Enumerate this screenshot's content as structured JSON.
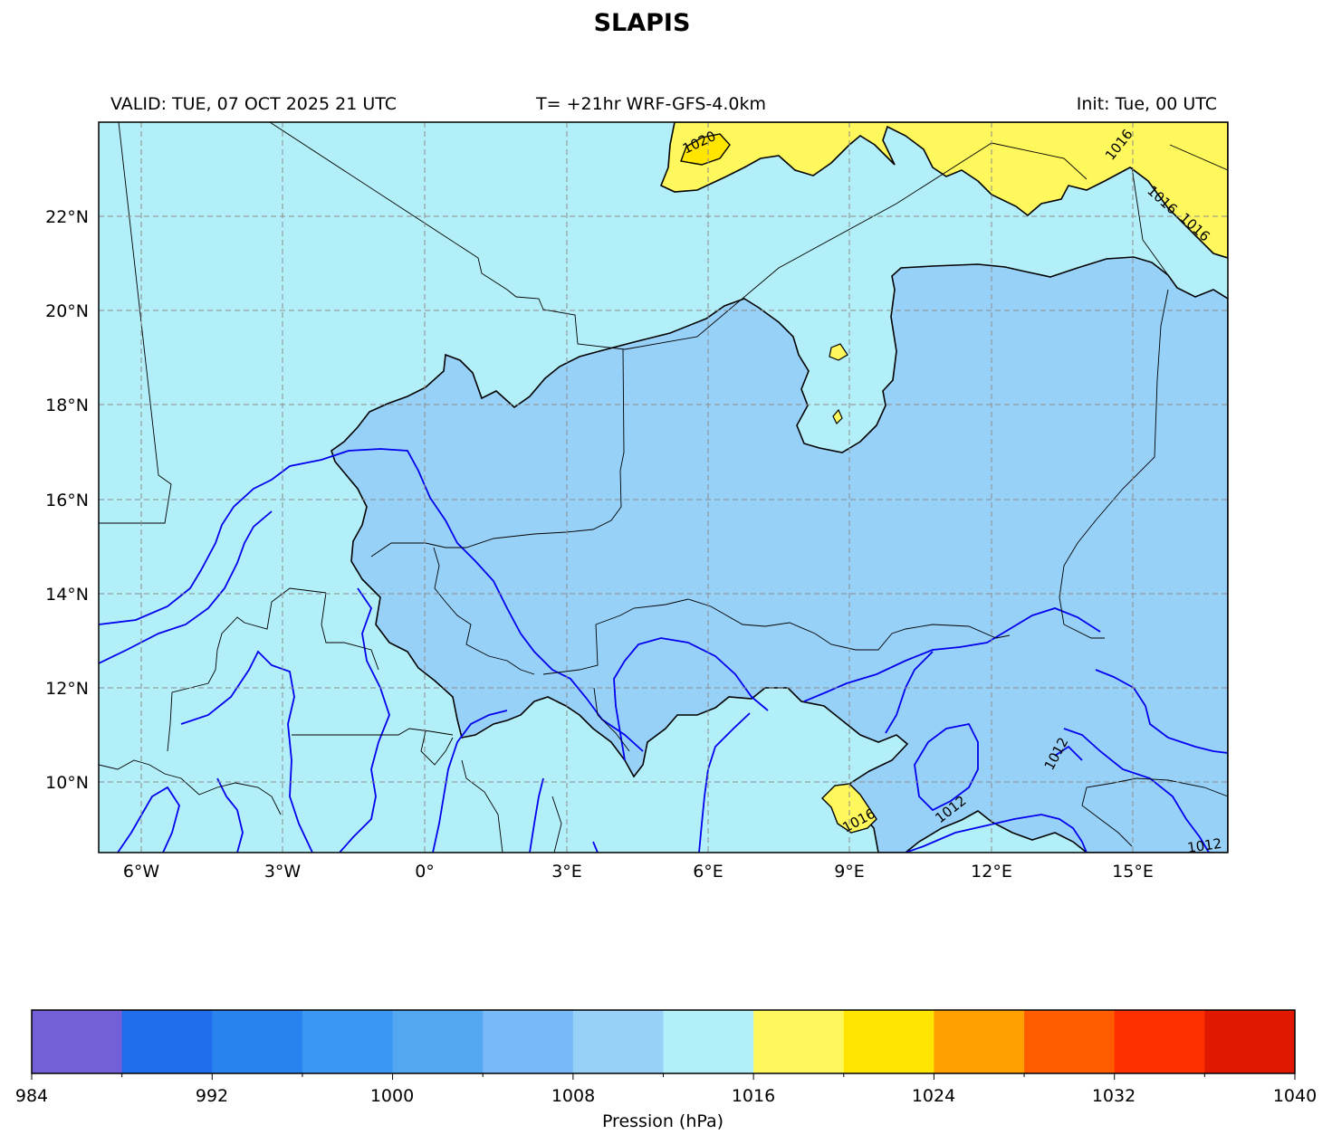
{
  "header": {
    "title": "SLAPIS",
    "valid": "VALID: TUE, 07 OCT 2025 21 UTC",
    "forecast": "T= +21hr WRF-GFS-4.0km",
    "init": "Init: Tue, 00 UTC"
  },
  "map": {
    "lon_labels": [
      "6°W",
      "3°W",
      "0°",
      "3°E",
      "6°E",
      "9°E",
      "12°E",
      "15°E"
    ],
    "lat_labels": [
      "22°N",
      "20°N",
      "18°N",
      "16°N",
      "14°N",
      "12°N",
      "10°N"
    ],
    "contour_labels": [
      "1020",
      "1016",
      "1016",
      "1016",
      "1016",
      "1012",
      "1012",
      "1012"
    ],
    "fill_colors": {
      "low_1008_1012": "#98d1f8",
      "mid_1012_1016": "#b3eff8",
      "high_1016_1020": "#fff85c",
      "high_1020_1024": "#ffe500"
    },
    "isobar_color": "#0000ee",
    "boundary_color": "#000000"
  },
  "colorbar": {
    "label": "Pression (hPa)",
    "tick_labels": [
      "984",
      "992",
      "1000",
      "1008",
      "1016",
      "1024",
      "1032",
      "1040"
    ],
    "colors": [
      "#7360d8",
      "#1f6deb",
      "#2983ee",
      "#3c96f4",
      "#53a6f0",
      "#78b9f7",
      "#98d1f8",
      "#b3eff8",
      "#fff85c",
      "#ffe500",
      "#ffa000",
      "#ff5c00",
      "#ff3000",
      "#e01800"
    ]
  }
}
